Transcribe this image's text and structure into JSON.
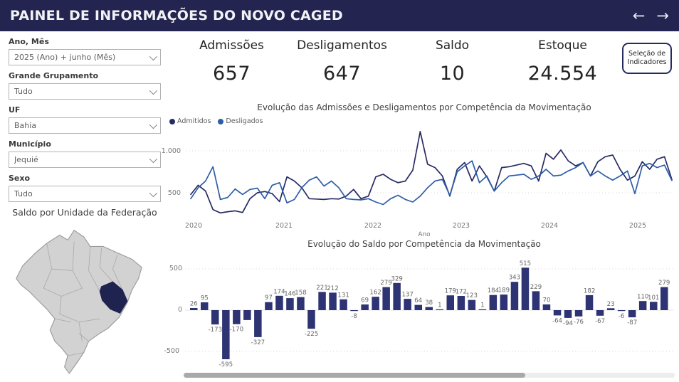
{
  "header": {
    "title": "PAINEL DE INFORMAÇÕES DO NOVO CAGED",
    "back_arrow": "←",
    "forward_arrow": "→"
  },
  "filters": [
    {
      "label": "Ano, Mês",
      "value": "2025 (Ano) + junho (Mês)"
    },
    {
      "label": "Grande Grupamento",
      "value": "Tudo"
    },
    {
      "label": "UF",
      "value": "Bahia"
    },
    {
      "label": "Município",
      "value": "Jequié"
    },
    {
      "label": "Sexo",
      "value": "Tudo"
    }
  ],
  "map": {
    "title": "Saldo por Unidade da Federação",
    "highlighted_state": "Bahia",
    "highlight_color": "#1f2350",
    "state_fill": "#d2d2d2",
    "state_border": "#9a9a9a"
  },
  "kpis": [
    {
      "label": "Admissões",
      "value": "657"
    },
    {
      "label": "Desligamentos",
      "value": "647"
    },
    {
      "label": "Saldo",
      "value": "10"
    },
    {
      "label": "Estoque",
      "value": "24.554"
    }
  ],
  "indicator_button": {
    "line1": "Seleção de",
    "line2": "Indicadores"
  },
  "chart_data": [
    {
      "type": "line",
      "title": "Evolução das Admissões e Desligamentos por Competência da Movimentação",
      "xlabel": "Ano",
      "x_ticks": [
        "2020",
        "2021",
        "2022",
        "2023",
        "2024",
        "2025"
      ],
      "y_ticks": [
        "1.000",
        "500"
      ],
      "y_gridlines": [
        1000,
        500
      ],
      "ylim": [
        180,
        1280
      ],
      "legend_position": "top-left",
      "series": [
        {
          "name": "Admitidos",
          "color": "#262b63",
          "values": [
            480,
            590,
            520,
            300,
            260,
            275,
            285,
            265,
            430,
            500,
            515,
            490,
            395,
            690,
            640,
            560,
            430,
            425,
            420,
            430,
            425,
            460,
            540,
            430,
            460,
            690,
            720,
            660,
            620,
            640,
            770,
            1230,
            840,
            800,
            700,
            460,
            780,
            860,
            640,
            820,
            690,
            520,
            800,
            810,
            830,
            850,
            820,
            640,
            970,
            900,
            1010,
            880,
            820,
            860,
            700,
            870,
            930,
            950,
            780,
            650,
            700,
            870,
            780,
            900,
            930,
            657
          ]
        },
        {
          "name": "Desligados",
          "color": "#2d5da8",
          "values": [
            430,
            560,
            640,
            810,
            420,
            445,
            545,
            480,
            540,
            555,
            430,
            590,
            620,
            380,
            420,
            560,
            650,
            690,
            580,
            640,
            560,
            430,
            420,
            415,
            430,
            390,
            360,
            430,
            470,
            420,
            390,
            460,
            560,
            640,
            660,
            470,
            750,
            820,
            880,
            620,
            700,
            520,
            620,
            700,
            710,
            720,
            660,
            700,
            780,
            700,
            710,
            760,
            800,
            860,
            700,
            760,
            700,
            650,
            700,
            760,
            490,
            820,
            850,
            800,
            830,
            647
          ]
        }
      ]
    },
    {
      "type": "bar",
      "title": "Evolução do Saldo por Competência da Movimentação",
      "bar_color": "#2d3373",
      "label_color": "#666666",
      "y_ticks": [
        "500",
        "0",
        "-500"
      ],
      "y_gridlines": [
        500,
        -500
      ],
      "ylim": [
        -650,
        600
      ],
      "values": [
        26,
        95,
        -173,
        -595,
        -170,
        -120,
        -327,
        97,
        174,
        146,
        158,
        -225,
        221,
        212,
        131,
        -8,
        69,
        162,
        279,
        329,
        137,
        64,
        38,
        1,
        179,
        172,
        123,
        1,
        184,
        189,
        343,
        515,
        229,
        70,
        -64,
        -94,
        -76,
        182,
        -67,
        23,
        -6,
        -87,
        110,
        101,
        279
      ],
      "labels": [
        "26",
        "95",
        "-173",
        "-595",
        "-170",
        "",
        "-327",
        "97",
        "174",
        "146",
        "158",
        "-225",
        "221",
        "212",
        "131",
        "-8",
        "69",
        "162",
        "279",
        "329",
        "137",
        "64",
        "38",
        "1",
        "179",
        "172",
        "123",
        "1",
        "184",
        "189",
        "343",
        "515",
        "229",
        "70",
        "-64",
        "-94",
        "-76",
        "182",
        "-67",
        "23",
        "-6",
        "-87",
        "110",
        "101",
        "279"
      ]
    }
  ]
}
